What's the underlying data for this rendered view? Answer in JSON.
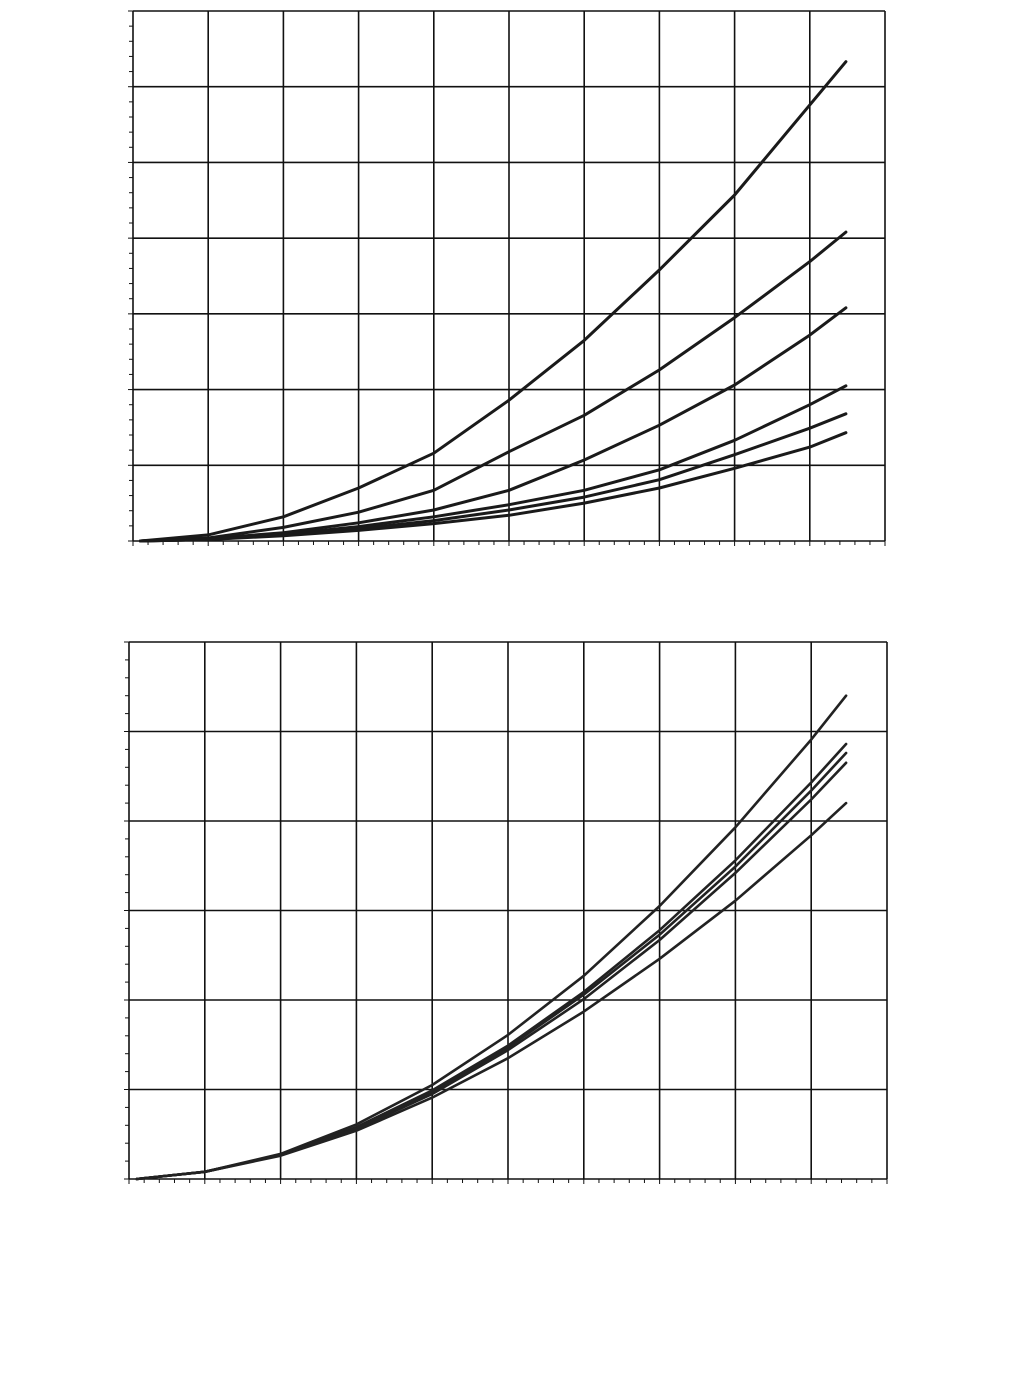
{
  "chart_data": [
    {
      "type": "line",
      "grid": true,
      "xlim": [
        0,
        10
      ],
      "xticks": [
        0,
        1,
        2,
        3,
        4,
        5,
        6,
        7,
        8,
        9,
        10
      ],
      "ylim": [
        0,
        7
      ],
      "yticks": [
        0,
        1,
        2,
        3,
        4,
        5,
        6,
        7
      ],
      "x": [
        0.1,
        1,
        2,
        3,
        4,
        5,
        6,
        7,
        8,
        9,
        9.48
      ],
      "series": [
        {
          "color": "#1a1a1a",
          "values": [
            0,
            0.08,
            0.32,
            0.7,
            1.16,
            1.86,
            2.65,
            3.58,
            4.57,
            5.76,
            6.33
          ]
        },
        {
          "color": "#1a1a1a",
          "values": [
            0,
            0.04,
            0.18,
            0.38,
            0.67,
            1.18,
            1.66,
            2.26,
            2.95,
            3.69,
            4.08
          ]
        },
        {
          "color": "#1a1a1a",
          "values": [
            0,
            0.03,
            0.11,
            0.24,
            0.41,
            0.67,
            1.07,
            1.53,
            2.06,
            2.72,
            3.08
          ]
        },
        {
          "color": "#1a1a1a",
          "values": [
            0,
            0.02,
            0.09,
            0.19,
            0.32,
            0.48,
            0.67,
            0.94,
            1.33,
            1.8,
            2.05
          ]
        },
        {
          "color": "#1a1a1a",
          "values": [
            0,
            0.02,
            0.08,
            0.16,
            0.27,
            0.41,
            0.58,
            0.81,
            1.14,
            1.49,
            1.68
          ]
        },
        {
          "color": "#1a1a1a",
          "values": [
            0,
            0.02,
            0.07,
            0.14,
            0.23,
            0.34,
            0.5,
            0.7,
            0.96,
            1.24,
            1.43
          ]
        }
      ]
    },
    {
      "type": "line",
      "grid": true,
      "xlim": [
        0,
        10
      ],
      "xticks": [
        0,
        1,
        2,
        3,
        4,
        5,
        6,
        7,
        8,
        9,
        10
      ],
      "ylim": [
        0,
        6
      ],
      "yticks": [
        0,
        1,
        2,
        3,
        4,
        5,
        6
      ],
      "x": [
        0.1,
        1,
        2,
        3,
        4,
        5,
        6,
        7,
        8,
        9,
        9.46
      ],
      "series": [
        {
          "color": "#222222",
          "values": [
            0,
            0.08,
            0.28,
            0.61,
            1.05,
            1.61,
            2.27,
            3.05,
            3.93,
            4.91,
            5.4
          ]
        },
        {
          "color": "#222222",
          "values": [
            0,
            0.08,
            0.27,
            0.58,
            0.99,
            1.49,
            2.09,
            2.78,
            3.56,
            4.43,
            4.86
          ]
        },
        {
          "color": "#222222",
          "values": [
            0,
            0.08,
            0.27,
            0.57,
            0.97,
            1.47,
            2.06,
            2.73,
            3.49,
            4.34,
            4.76
          ]
        },
        {
          "color": "#222222",
          "values": [
            0,
            0.08,
            0.27,
            0.56,
            0.95,
            1.44,
            2.01,
            2.67,
            3.42,
            4.24,
            4.65
          ]
        },
        {
          "color": "#222222",
          "values": [
            0,
            0.08,
            0.26,
            0.54,
            0.91,
            1.35,
            1.87,
            2.46,
            3.11,
            3.84,
            4.2
          ]
        }
      ]
    }
  ]
}
